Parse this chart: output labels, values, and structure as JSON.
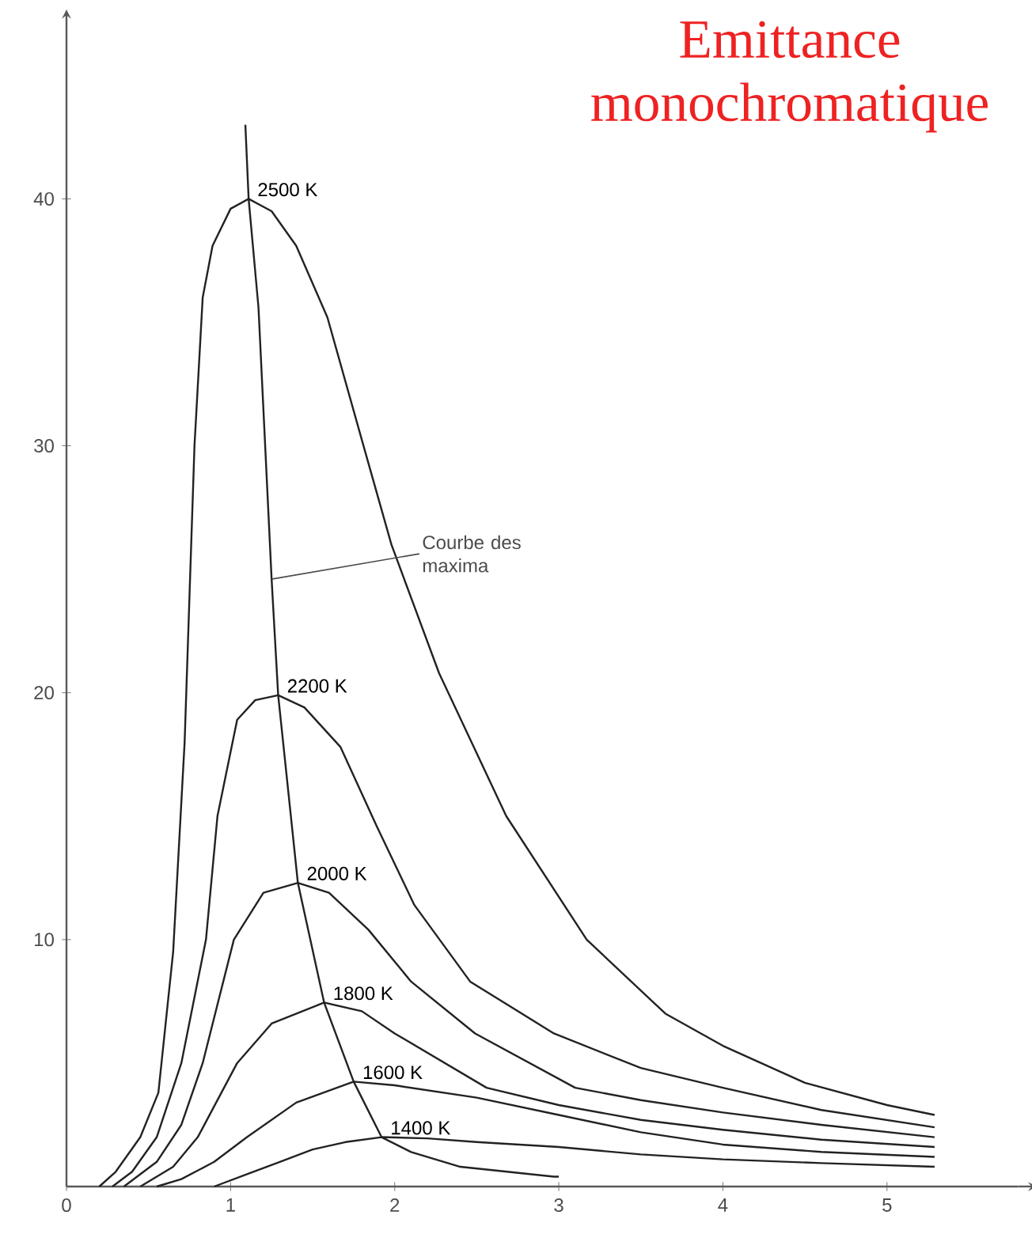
{
  "chart_data": {
    "type": "line",
    "title": "Emittance monochromatique",
    "xlim": [
      0,
      5.8
    ],
    "ylim": [
      0,
      47.5
    ],
    "xticks": [
      0,
      1,
      2,
      3,
      4,
      5
    ],
    "yticks": [
      10,
      20,
      30,
      40
    ],
    "marker": "none",
    "line_style": "solid",
    "series": [
      {
        "name": "2500 K",
        "color": "#222222",
        "x": [
          0.2,
          0.3,
          0.45,
          0.56,
          0.65,
          0.72,
          0.78,
          0.83,
          0.89,
          1.0,
          1.11,
          1.25,
          1.4,
          1.59,
          1.81,
          1.98,
          2.27,
          2.68,
          3.17,
          3.65,
          4.0,
          4.5,
          5.0,
          5.29
        ],
        "values": [
          0,
          0.6,
          2,
          3.8,
          9.5,
          18,
          30,
          36,
          38.1,
          39.6,
          40,
          39.5,
          38.1,
          35.2,
          30,
          26,
          20.8,
          15,
          10,
          7,
          5.7,
          4.2,
          3.3,
          2.9
        ]
      },
      {
        "name": "2200 K",
        "color": "#222222",
        "x": [
          0.28,
          0.4,
          0.55,
          0.7,
          0.85,
          0.92,
          1.04,
          1.15,
          1.29,
          1.45,
          1.67,
          1.89,
          2.12,
          2.46,
          2.97,
          3.5,
          4.0,
          4.6,
          5.29
        ],
        "values": [
          0,
          0.6,
          2,
          5,
          10,
          15,
          18.9,
          19.7,
          19.9,
          19.4,
          17.8,
          14.6,
          11.4,
          8.3,
          6.2,
          4.8,
          4.0,
          3.1,
          2.4
        ]
      },
      {
        "name": "2000 K",
        "color": "#222222",
        "x": [
          0.35,
          0.55,
          0.7,
          0.83,
          1.02,
          1.2,
          1.41,
          1.6,
          1.84,
          2.1,
          2.49,
          3.1,
          3.5,
          4.0,
          4.6,
          5.29
        ],
        "values": [
          0,
          1,
          2.5,
          5,
          10,
          11.9,
          12.3,
          11.9,
          10.4,
          8.3,
          6.2,
          4.0,
          3.5,
          3.0,
          2.5,
          2.0
        ]
      },
      {
        "name": "1800 K",
        "color": "#222222",
        "x": [
          0.45,
          0.65,
          0.8,
          1.04,
          1.25,
          1.57,
          1.8,
          2.0,
          2.56,
          3.0,
          3.5,
          4.0,
          4.6,
          5.29
        ],
        "values": [
          0,
          0.8,
          2,
          5,
          6.6,
          7.45,
          7.1,
          6.2,
          4.0,
          3.3,
          2.7,
          2.3,
          1.9,
          1.6
        ]
      },
      {
        "name": "1600 K",
        "color": "#222222",
        "x": [
          0.55,
          0.7,
          0.9,
          1.1,
          1.4,
          1.75,
          2.0,
          2.5,
          3.0,
          3.5,
          4.0,
          4.6,
          5.29
        ],
        "values": [
          0,
          0.3,
          1,
          2,
          3.4,
          4.25,
          4.1,
          3.6,
          2.9,
          2.2,
          1.7,
          1.4,
          1.2
        ]
      },
      {
        "name": "1400 K",
        "color": "#222222",
        "x": [
          0.9,
          1.1,
          1.3,
          1.5,
          1.7,
          1.92,
          2.2,
          2.5,
          3.0,
          3.5,
          4.0,
          4.6,
          5.29
        ],
        "values": [
          0,
          0.5,
          1.0,
          1.5,
          1.8,
          2.0,
          1.95,
          1.8,
          1.6,
          1.3,
          1.1,
          0.95,
          0.8
        ]
      },
      {
        "color": "#222222",
        "x": [
          1.09,
          1.11,
          1.17,
          1.25,
          1.29,
          1.41,
          1.57,
          1.75,
          1.92,
          2.1,
          2.4,
          2.97,
          3.0
        ],
        "values": [
          43,
          40,
          35.6,
          24.6,
          19.9,
          12.3,
          7.45,
          4.25,
          2.0,
          1.4,
          0.8,
          0.4,
          0.4
        ]
      }
    ],
    "annotations": [
      {
        "text": "Courbe des maxima",
        "x": 1.25,
        "y": 24.6
      }
    ]
  }
}
